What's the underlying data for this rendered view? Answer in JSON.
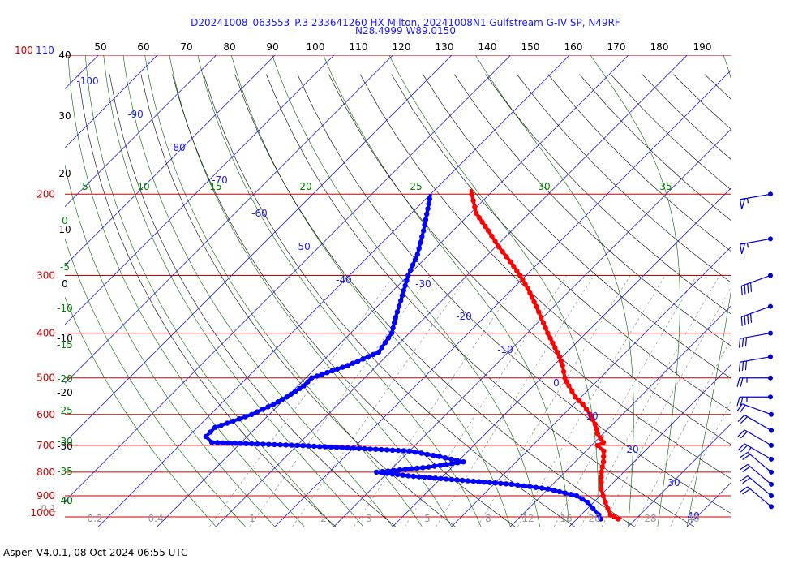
{
  "header": {
    "title_line1": "D20241008_063553_P.3 233641260 HX Milton, 20241008N1 Gulfstream G-IV SP, N49RF",
    "title_line2": "N28.4999 W89.0150"
  },
  "footer": {
    "text": "Aspen V4.0.1, 08 Oct 2024  06:55 UTC"
  },
  "colors": {
    "isobar": "#cc0000",
    "isotherm": "#0000cc",
    "dry_adiabat": "#000000",
    "moist_adiabat": "#006400",
    "mixing_ratio": "#808080",
    "temperature": "#ff0000",
    "dewpoint": "#0000ff",
    "wind_barb": "#0000cc"
  },
  "chart_data": {
    "type": "skew-t",
    "title": "D20241008_063553_P.3 233641260 HX Milton, 20241008N1 Gulfstream G-IV SP, N49RF",
    "subtitle": "N28.4999 W89.0150",
    "pressure_levels_hPa": [
      100,
      200,
      300,
      400,
      500,
      600,
      700,
      800,
      900,
      1000
    ],
    "pressure_labels": [
      "100-110",
      "200",
      "300",
      "400",
      "500",
      "600",
      "700",
      "800",
      "900",
      "1000"
    ],
    "top_axis_ticks": [
      "50",
      "60",
      "70",
      "80",
      "90",
      "100",
      "110",
      "120",
      "130",
      "140",
      "150",
      "160",
      "170",
      "180",
      "190"
    ],
    "left_altitude_labels": [
      "40",
      "30",
      "20",
      "10",
      "0",
      "-10",
      "-20",
      "-30",
      "-40"
    ],
    "isotherm_labels": [
      "-100",
      "-90",
      "-80",
      "-70",
      "-60",
      "-50",
      "-40",
      "-30",
      "-20",
      "-10",
      "0",
      "10",
      "20",
      "30",
      "40"
    ],
    "moist_adiabat_top_labels": [
      "5",
      "10",
      "15",
      "20",
      "25",
      "30",
      "35"
    ],
    "moist_adiabat_left_labels": [
      "0",
      "-5",
      "-10",
      "-15",
      "-20",
      "-25",
      "-30",
      "-35",
      "-40"
    ],
    "mixing_ratio_labels": [
      "0.1",
      "0.2",
      "0.4",
      "1",
      "2",
      "3",
      "5",
      "8",
      "12",
      "16",
      "20",
      "28",
      "40"
    ],
    "ylim_hPa": [
      100,
      1000
    ],
    "temperature_profile": [
      {
        "p": 1010,
        "t": 27.0
      },
      {
        "p": 990,
        "t": 25.0
      },
      {
        "p": 960,
        "t": 23.5
      },
      {
        "p": 930,
        "t": 22.0
      },
      {
        "p": 900,
        "t": 20.5
      },
      {
        "p": 870,
        "t": 19.0
      },
      {
        "p": 840,
        "t": 17.8
      },
      {
        "p": 800,
        "t": 16.2
      },
      {
        "p": 760,
        "t": 14.8
      },
      {
        "p": 720,
        "t": 13.0
      },
      {
        "p": 700,
        "t": 11.0
      },
      {
        "p": 690,
        "t": 11.5
      },
      {
        "p": 660,
        "t": 9.0
      },
      {
        "p": 630,
        "t": 7.0
      },
      {
        "p": 600,
        "t": 4.5
      },
      {
        "p": 570,
        "t": 1.5
      },
      {
        "p": 550,
        "t": -1.0
      },
      {
        "p": 520,
        "t": -4.0
      },
      {
        "p": 500,
        "t": -6.0
      },
      {
        "p": 470,
        "t": -8.5
      },
      {
        "p": 450,
        "t": -10.5
      },
      {
        "p": 420,
        "t": -14.0
      },
      {
        "p": 400,
        "t": -16.5
      },
      {
        "p": 380,
        "t": -19.0
      },
      {
        "p": 350,
        "t": -23.0
      },
      {
        "p": 320,
        "t": -27.5
      },
      {
        "p": 300,
        "t": -31.0
      },
      {
        "p": 280,
        "t": -35.0
      },
      {
        "p": 260,
        "t": -39.5
      },
      {
        "p": 240,
        "t": -44.0
      },
      {
        "p": 220,
        "t": -49.0
      },
      {
        "p": 200,
        "t": -53.0
      },
      {
        "p": 195,
        "t": -54.0
      }
    ],
    "dewpoint_profile": [
      {
        "p": 1010,
        "t": 24.0
      },
      {
        "p": 990,
        "t": 23.0
      },
      {
        "p": 960,
        "t": 21.0
      },
      {
        "p": 930,
        "t": 19.0
      },
      {
        "p": 900,
        "t": 16.0
      },
      {
        "p": 870,
        "t": 10.0
      },
      {
        "p": 850,
        "t": 3.0
      },
      {
        "p": 830,
        "t": -8.0
      },
      {
        "p": 815,
        "t": -16.0
      },
      {
        "p": 800,
        "t": -22.0
      },
      {
        "p": 780,
        "t": -14.0
      },
      {
        "p": 760,
        "t": -9.0
      },
      {
        "p": 740,
        "t": -14.0
      },
      {
        "p": 720,
        "t": -20.0
      },
      {
        "p": 700,
        "t": -40.0
      },
      {
        "p": 690,
        "t": -55.0
      },
      {
        "p": 670,
        "t": -57.0
      },
      {
        "p": 640,
        "t": -57.0
      },
      {
        "p": 620,
        "t": -55.0
      },
      {
        "p": 600,
        "t": -53.0
      },
      {
        "p": 570,
        "t": -51.0
      },
      {
        "p": 550,
        "t": -50.0
      },
      {
        "p": 520,
        "t": -49.0
      },
      {
        "p": 500,
        "t": -49.0
      },
      {
        "p": 470,
        "t": -45.0
      },
      {
        "p": 440,
        "t": -42.0
      },
      {
        "p": 400,
        "t": -43.0
      },
      {
        "p": 370,
        "t": -45.0
      },
      {
        "p": 340,
        "t": -47.0
      },
      {
        "p": 300,
        "t": -50.0
      },
      {
        "p": 270,
        "t": -52.0
      },
      {
        "p": 240,
        "t": -55.0
      },
      {
        "p": 215,
        "t": -58.0
      },
      {
        "p": 200,
        "t": -60.0
      }
    ],
    "grid": true,
    "legend": "none"
  },
  "wind_barbs": [
    {
      "p": 200,
      "speed_kt": 55,
      "dir": 260
    },
    {
      "p": 250,
      "speed_kt": 55,
      "dir": 260
    },
    {
      "p": 300,
      "speed_kt": 40,
      "dir": 250
    },
    {
      "p": 350,
      "speed_kt": 40,
      "dir": 250
    },
    {
      "p": 400,
      "speed_kt": 30,
      "dir": 260
    },
    {
      "p": 450,
      "speed_kt": 30,
      "dir": 260
    },
    {
      "p": 500,
      "speed_kt": 25,
      "dir": 270
    },
    {
      "p": 550,
      "speed_kt": 25,
      "dir": 270
    },
    {
      "p": 600,
      "speed_kt": 20,
      "dir": 290
    },
    {
      "p": 650,
      "speed_kt": 20,
      "dir": 300
    },
    {
      "p": 700,
      "speed_kt": 20,
      "dir": 300
    },
    {
      "p": 750,
      "speed_kt": 25,
      "dir": 300
    },
    {
      "p": 800,
      "speed_kt": 20,
      "dir": 310
    },
    {
      "p": 850,
      "speed_kt": 20,
      "dir": 310
    },
    {
      "p": 900,
      "speed_kt": 20,
      "dir": 310
    },
    {
      "p": 950,
      "speed_kt": 20,
      "dir": 310
    }
  ]
}
